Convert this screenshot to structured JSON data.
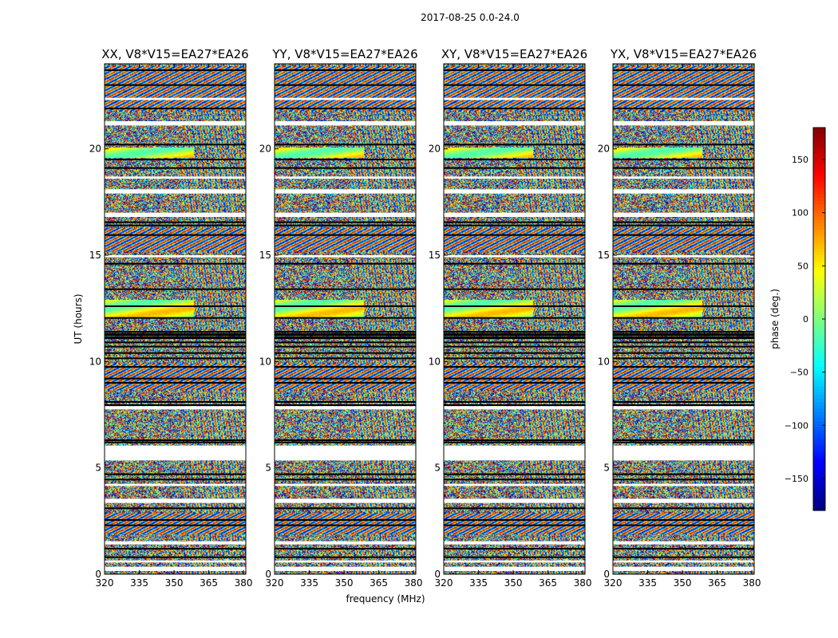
{
  "chart_data": {
    "type": "heatmap",
    "title": "2017-08-25 0.0-24.0",
    "xlabel": "frequency (MHz)",
    "ylabel": "UT (hours)",
    "xlim": [
      320,
      381
    ],
    "ylim": [
      0,
      24
    ],
    "xticks": [
      320,
      335,
      350,
      365,
      380
    ],
    "yticks": [
      0,
      5,
      10,
      15,
      20
    ],
    "panels": [
      {
        "title": "XX, V8*V15=EA27*EA26"
      },
      {
        "title": "YY, V8*V15=EA27*EA26"
      },
      {
        "title": "XY, V8*V15=EA27*EA26"
      },
      {
        "title": "YX, V8*V15=EA27*EA26"
      }
    ],
    "colorbar": {
      "label": "phase (deg.)",
      "range": [
        -180,
        180
      ],
      "ticks": [
        150,
        100,
        50,
        0,
        -50,
        -100,
        -150
      ],
      "tick_labels": [
        "150",
        "100",
        "50",
        "0",
        "−50",
        "−100",
        "−150"
      ],
      "colormap": "jet"
    },
    "missing_bands": [
      [
        0.15,
        0.35
      ],
      [
        0.55,
        0.65
      ],
      [
        1.4,
        1.55
      ],
      [
        3.35,
        3.55
      ],
      [
        4.15,
        4.25
      ],
      [
        5.35,
        6.05
      ],
      [
        7.75,
        7.9
      ],
      [
        14.9,
        15.0
      ],
      [
        16.8,
        17.0
      ],
      [
        17.9,
        18.1
      ],
      [
        18.6,
        18.7
      ],
      [
        21.1,
        21.3
      ],
      [
        22.3,
        22.4
      ]
    ],
    "flag_lines": [
      0.8,
      1.2,
      2.3,
      2.55,
      3.1,
      4.45,
      4.7,
      6.2,
      6.3,
      7.95,
      8.1,
      9.0,
      9.2,
      9.75,
      10.15,
      10.4,
      10.7,
      10.9,
      11.1,
      11.15,
      11.25,
      11.3,
      11.4,
      12.05,
      12.6,
      13.4,
      14.6,
      15.95,
      16.4,
      16.55,
      19.1,
      19.5,
      20.2,
      21.9,
      23.0,
      23.7
    ]
  }
}
